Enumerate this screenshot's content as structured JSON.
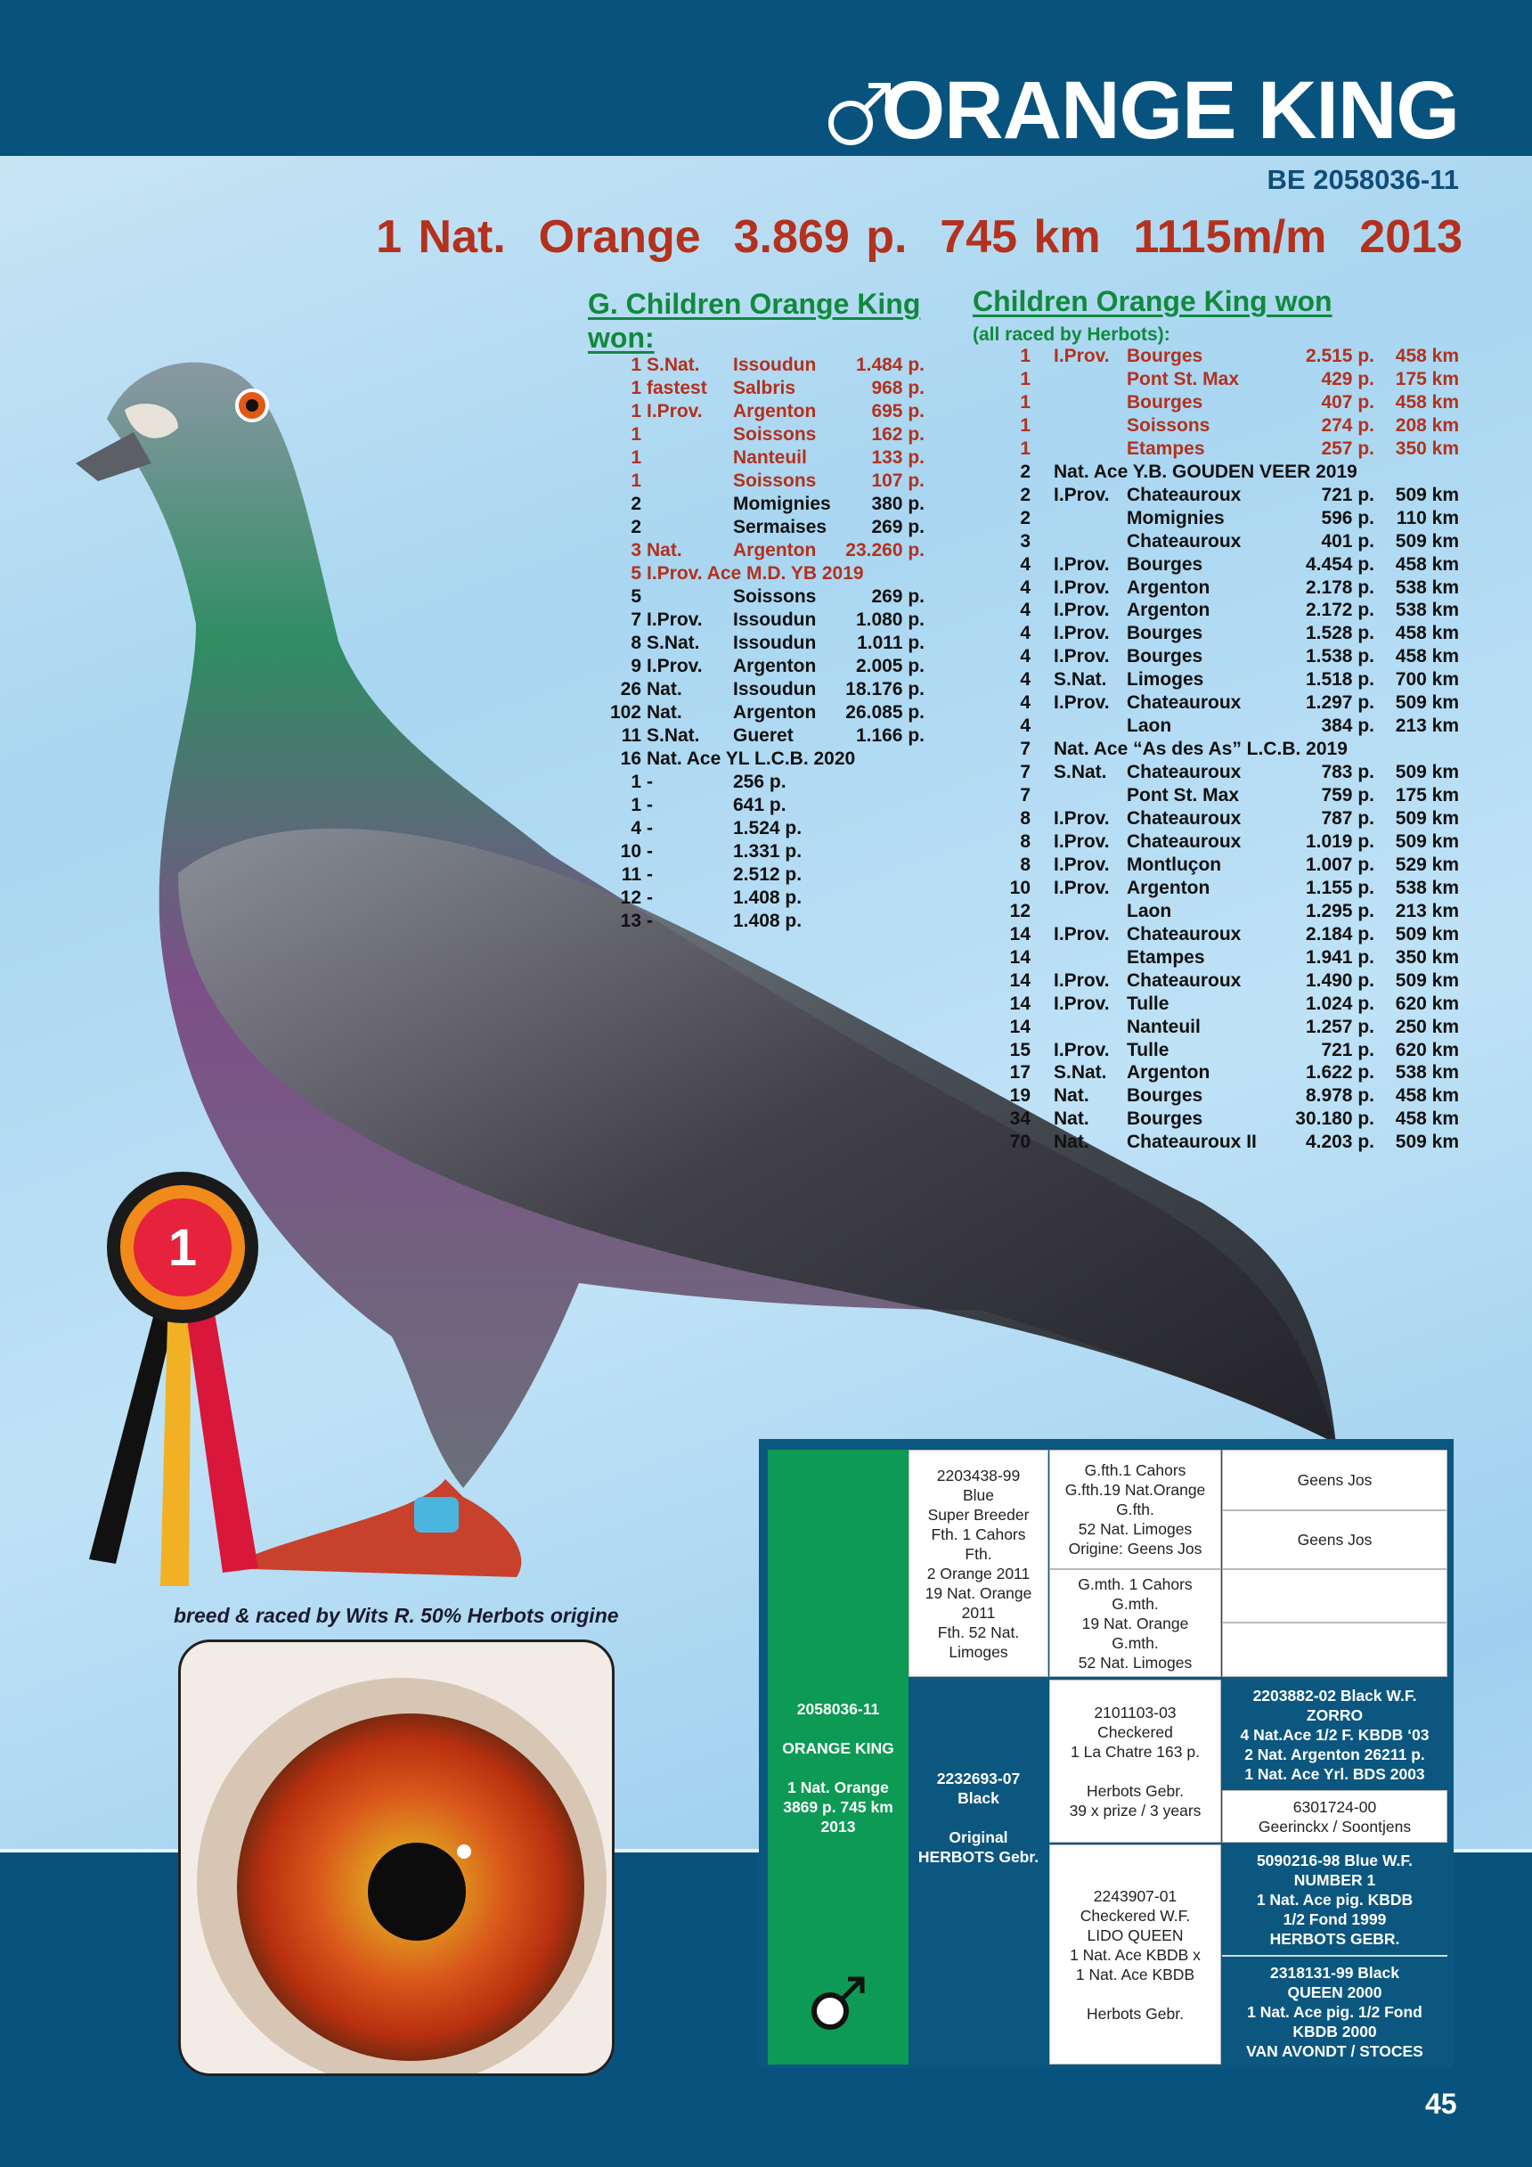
{
  "header": {
    "title": "ORANGE KING",
    "ring": "BE 2058036-11",
    "headline": "1 Nat.  Orange  3.869 p.  745 km  1115m/m  2013",
    "sex_icon": "male-symbol"
  },
  "grandchildren": {
    "title": "G. Children Orange King won:",
    "rows": [
      {
        "n": "1",
        "t": "S.Nat.",
        "p": "Issoudun",
        "pts": "1.484 p.",
        "red": true
      },
      {
        "n": "1",
        "t": "fastest",
        "p": "Salbris",
        "pts": "968 p.",
        "red": true
      },
      {
        "n": "1",
        "t": "I.Prov.",
        "p": "Argenton",
        "pts": "695 p.",
        "red": true
      },
      {
        "n": "1",
        "t": "",
        "p": "Soissons",
        "pts": "162 p.",
        "red": true
      },
      {
        "n": "1",
        "t": "",
        "p": "Nanteuil",
        "pts": "133 p.",
        "red": true
      },
      {
        "n": "1",
        "t": "",
        "p": "Soissons",
        "pts": "107 p.",
        "red": true
      },
      {
        "n": "2",
        "t": "",
        "p": "Momignies",
        "pts": "380 p."
      },
      {
        "n": "2",
        "t": "",
        "p": "Sermaises",
        "pts": "269 p."
      },
      {
        "n": "3",
        "t": "Nat.",
        "p": "Argenton",
        "pts": "23.260 p.",
        "red": true
      },
      {
        "n": "5",
        "t": "I.Prov. Ace M.D. YB 2019",
        "p": "",
        "pts": "",
        "red": true
      },
      {
        "n": "5",
        "t": "",
        "p": "Soissons",
        "pts": "269 p."
      },
      {
        "n": "7",
        "t": "I.Prov.",
        "p": "Issoudun",
        "pts": "1.080 p."
      },
      {
        "n": "8",
        "t": "S.Nat.",
        "p": "Issoudun",
        "pts": "1.011 p."
      },
      {
        "n": "9",
        "t": "I.Prov.",
        "p": "Argenton",
        "pts": "2.005 p."
      },
      {
        "n": "26",
        "t": "Nat.",
        "p": "Issoudun",
        "pts": "18.176 p."
      },
      {
        "n": "102",
        "t": "Nat.",
        "p": "Argenton",
        "pts": "26.085 p."
      },
      {
        "n": "11",
        "t": "S.Nat.",
        "p": "Gueret",
        "pts": "1.166 p."
      },
      {
        "n": "16",
        "t": "Nat. Ace YL L.C.B. 2020",
        "p": "",
        "pts": ""
      },
      {
        "n": "1",
        "t": "-",
        "p": "256 p.",
        "pts": ""
      },
      {
        "n": "1",
        "t": "-",
        "p": "641 p.",
        "pts": ""
      },
      {
        "n": "4",
        "t": "-",
        "p": "1.524 p.",
        "pts": ""
      },
      {
        "n": "10",
        "t": "-",
        "p": "1.331 p.",
        "pts": ""
      },
      {
        "n": "11",
        "t": "-",
        "p": "2.512 p.",
        "pts": ""
      },
      {
        "n": "12",
        "t": "-",
        "p": "1.408 p.",
        "pts": ""
      },
      {
        "n": "13",
        "t": "-",
        "p": "1.408 p.",
        "pts": ""
      }
    ]
  },
  "children": {
    "title": "Children Orange King won",
    "subtitle": "(all raced by Herbots):",
    "rows": [
      {
        "n": "1",
        "t": "I.Prov.",
        "p": "Bourges",
        "pts": "2.515 p.",
        "km": "458 km",
        "red": true
      },
      {
        "n": "1",
        "t": "",
        "p": "Pont St. Max",
        "pts": "429 p.",
        "km": "175 km",
        "red": true
      },
      {
        "n": "1",
        "t": "",
        "p": "Bourges",
        "pts": "407 p.",
        "km": "458 km",
        "red": true
      },
      {
        "n": "1",
        "t": "",
        "p": "Soissons",
        "pts": "274 p.",
        "km": "208 km",
        "red": true
      },
      {
        "n": "1",
        "t": "",
        "p": "Etampes",
        "pts": "257 p.",
        "km": "350 km",
        "red": true
      },
      {
        "n": "2",
        "t": "Nat. Ace Y.B. GOUDEN VEER 2019",
        "p": "",
        "pts": "",
        "km": ""
      },
      {
        "n": "2",
        "t": "I.Prov.",
        "p": "Chateauroux",
        "pts": "721 p.",
        "km": "509 km"
      },
      {
        "n": "2",
        "t": "",
        "p": "Momignies",
        "pts": "596 p.",
        "km": "110 km"
      },
      {
        "n": "3",
        "t": "",
        "p": "Chateauroux",
        "pts": "401 p.",
        "km": "509 km"
      },
      {
        "n": "4",
        "t": "I.Prov.",
        "p": "Bourges",
        "pts": "4.454 p.",
        "km": "458 km"
      },
      {
        "n": "4",
        "t": "I.Prov.",
        "p": "Argenton",
        "pts": "2.178 p.",
        "km": "538 km"
      },
      {
        "n": "4",
        "t": "I.Prov.",
        "p": "Argenton",
        "pts": "2.172 p.",
        "km": "538 km"
      },
      {
        "n": "4",
        "t": "I.Prov.",
        "p": "Bourges",
        "pts": "1.528 p.",
        "km": "458 km"
      },
      {
        "n": "4",
        "t": "I.Prov.",
        "p": "Bourges",
        "pts": "1.538 p.",
        "km": "458 km"
      },
      {
        "n": "4",
        "t": "S.Nat.",
        "p": "Limoges",
        "pts": "1.518 p.",
        "km": "700 km"
      },
      {
        "n": "4",
        "t": "I.Prov.",
        "p": "Chateauroux",
        "pts": "1.297 p.",
        "km": "509 km"
      },
      {
        "n": "4",
        "t": "",
        "p": "Laon",
        "pts": "384 p.",
        "km": "213 km"
      },
      {
        "n": "7",
        "t": "Nat. Ace “As des As” L.C.B. 2019",
        "p": "",
        "pts": "",
        "km": ""
      },
      {
        "n": "7",
        "t": "S.Nat.",
        "p": "Chateauroux",
        "pts": "783 p.",
        "km": "509 km"
      },
      {
        "n": "7",
        "t": "",
        "p": "Pont St. Max",
        "pts": "759 p.",
        "km": "175 km"
      },
      {
        "n": "8",
        "t": "I.Prov.",
        "p": "Chateauroux",
        "pts": "787 p.",
        "km": "509 km"
      },
      {
        "n": "8",
        "t": "I.Prov.",
        "p": "Chateauroux",
        "pts": "1.019 p.",
        "km": "509 km"
      },
      {
        "n": "8",
        "t": "I.Prov.",
        "p": "Montluçon",
        "pts": "1.007 p.",
        "km": "529 km"
      },
      {
        "n": "10",
        "t": "I.Prov.",
        "p": "Argenton",
        "pts": "1.155 p.",
        "km": "538 km"
      },
      {
        "n": "12",
        "t": "",
        "p": "Laon",
        "pts": "1.295 p.",
        "km": "213 km"
      },
      {
        "n": "14",
        "t": "I.Prov.",
        "p": "Chateauroux",
        "pts": "2.184 p.",
        "km": "509 km"
      },
      {
        "n": "14",
        "t": "",
        "p": "Etampes",
        "pts": "1.941 p.",
        "km": "350 km"
      },
      {
        "n": "14",
        "t": "I.Prov.",
        "p": "Chateauroux",
        "pts": "1.490 p.",
        "km": "509 km"
      },
      {
        "n": "14",
        "t": "I.Prov.",
        "p": "Tulle",
        "pts": "1.024 p.",
        "km": "620 km"
      },
      {
        "n": "14",
        "t": "",
        "p": "Nanteuil",
        "pts": "1.257 p.",
        "km": "250 km"
      },
      {
        "n": "15",
        "t": "I.Prov.",
        "p": "Tulle",
        "pts": "721 p.",
        "km": "620 km"
      },
      {
        "n": "17",
        "t": "S.Nat.",
        "p": "Argenton",
        "pts": "1.622 p.",
        "km": "538 km"
      },
      {
        "n": "19",
        "t": "Nat.",
        "p": "Bourges",
        "pts": "8.978 p.",
        "km": "458 km"
      },
      {
        "n": "34",
        "t": "Nat.",
        "p": "Bourges",
        "pts": "30.180 p.",
        "km": "458 km"
      },
      {
        "n": "70",
        "t": "Nat.",
        "p": "Chateauroux II",
        "pts": "4.203 p.",
        "km": "509 km"
      }
    ]
  },
  "rosette": {
    "text": "1"
  },
  "caption": "breed & raced by Wits R. 50% Herbots origine",
  "pedigree": {
    "subject": "2058036-11\n\nORANGE KING\n\n1 Nat. Orange\n3869 p. 745 km\n2013",
    "father": "2203438-99\nBlue\nSuper Breeder\nFth. 1 Cahors\nFth.\n2 Orange 2011\n19 Nat. Orange\n2011\nFth. 52 Nat.\nLimoges",
    "mother": "2232693-07\nBlack\n\nOriginal\nHERBOTS Gebr.",
    "ff": "G.fth.1 Cahors\nG.fth.19 Nat.Orange\nG.fth.\n52 Nat. Limoges\nOrigine: Geens Jos",
    "fm": "G.mth. 1 Cahors\nG.mth.\n19 Nat. Orange\nG.mth.\n52 Nat. Limoges",
    "mf": "2101103-03\nCheckered\n1 La Chatre 163 p.\n\nHerbots Gebr.\n39 x prize / 3 years",
    "mm": "2243907-01\nCheckered W.F.\nLIDO QUEEN\n1 Nat. Ace KBDB x\n1 Nat. Ace KBDB\n\nHerbots Gebr.",
    "fff": "Geens Jos",
    "ffm": "Geens Jos",
    "fmf": "",
    "fmm": "",
    "mff": "2203882-02 Black W.F.\nZORRO\n4 Nat.Ace 1/2 F. KBDB ‘03\n2  Nat. Argenton 26211 p.\n1   Nat. Ace Yrl. BDS 2003",
    "mfm": "6301724-00\nGeerinckx / Soontjens",
    "mmf": "5090216-98 Blue W.F.\nNUMBER 1\n1 Nat. Ace pig. KBDB\n1/2 Fond 1999\nHERBOTS GEBR.",
    "mmm": "2318131-99 Black\nQUEEN 2000\n1 Nat. Ace pig. 1/2 Fond\nKBDB 2000\nVAN AVONDT / STOCES"
  },
  "page_number": "45",
  "colors": {
    "navy": "#08537e",
    "red": "#b3311d",
    "green": "#11893d",
    "pedigree_green": "#0d9a55"
  }
}
